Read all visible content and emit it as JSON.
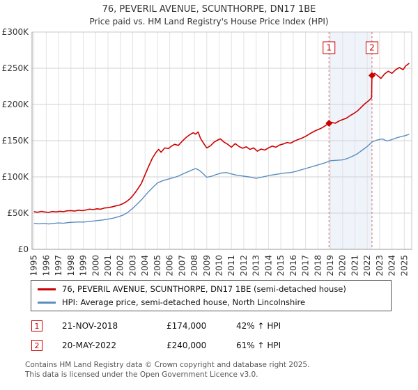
{
  "title": "76, PEVERIL AVENUE, SCUNTHORPE, DN17 1BE",
  "subtitle": "Price paid vs. HM Land Registry's House Price Index (HPI)",
  "chart_data": {
    "type": "line",
    "xlim": [
      1994.85,
      2025.6
    ],
    "ylim": [
      0,
      300000
    ],
    "grid": true,
    "legend_position": "bottom",
    "yticks": {
      "values": [
        0,
        50000,
        100000,
        150000,
        200000,
        250000,
        300000
      ],
      "labels": [
        "£0",
        "£50K",
        "£100K",
        "£150K",
        "£200K",
        "£250K",
        "£300K"
      ]
    },
    "xticks": [
      1995,
      1996,
      1997,
      1998,
      1999,
      2000,
      2001,
      2002,
      2003,
      2004,
      2005,
      2006,
      2007,
      2008,
      2009,
      2010,
      2011,
      2012,
      2013,
      2014,
      2015,
      2016,
      2017,
      2018,
      2019,
      2020,
      2021,
      2022,
      2023,
      2024,
      2025
    ],
    "band": {
      "from": 2018.9,
      "to": 2022.38,
      "color": "#e6edf8"
    },
    "marker_line_color": "#dd6666",
    "series": [
      {
        "name": "76, PEVERIL AVENUE, SCUNTHORPE, DN17 1BE (semi-detached house)",
        "color": "#cc0000",
        "points": [
          [
            1995.0,
            52000
          ],
          [
            1995.3,
            51200
          ],
          [
            1995.6,
            52400
          ],
          [
            1995.9,
            51500
          ],
          [
            1996.2,
            51000
          ],
          [
            1996.5,
            52200
          ],
          [
            1996.8,
            51600
          ],
          [
            1997.1,
            52500
          ],
          [
            1997.4,
            52000
          ],
          [
            1997.7,
            53200
          ],
          [
            1998.0,
            53500
          ],
          [
            1998.3,
            52800
          ],
          [
            1998.6,
            54000
          ],
          [
            1998.9,
            53400
          ],
          [
            1999.2,
            54200
          ],
          [
            1999.5,
            55500
          ],
          [
            1999.8,
            54800
          ],
          [
            2000.1,
            56000
          ],
          [
            2000.4,
            55400
          ],
          [
            2000.7,
            57000
          ],
          [
            2001.0,
            57500
          ],
          [
            2001.3,
            58500
          ],
          [
            2001.6,
            59800
          ],
          [
            2001.9,
            61000
          ],
          [
            2002.2,
            63000
          ],
          [
            2002.5,
            66000
          ],
          [
            2002.8,
            70000
          ],
          [
            2003.1,
            76000
          ],
          [
            2003.4,
            83000
          ],
          [
            2003.7,
            91000
          ],
          [
            2004.0,
            103000
          ],
          [
            2004.3,
            115000
          ],
          [
            2004.6,
            126000
          ],
          [
            2004.9,
            134000
          ],
          [
            2005.1,
            138000
          ],
          [
            2005.3,
            134000
          ],
          [
            2005.6,
            140000
          ],
          [
            2005.9,
            139000
          ],
          [
            2006.1,
            142000
          ],
          [
            2006.4,
            145000
          ],
          [
            2006.7,
            143500
          ],
          [
            2007.0,
            149000
          ],
          [
            2007.3,
            154000
          ],
          [
            2007.6,
            158000
          ],
          [
            2007.9,
            161000
          ],
          [
            2008.1,
            159000
          ],
          [
            2008.3,
            162000
          ],
          [
            2008.5,
            153000
          ],
          [
            2008.8,
            145000
          ],
          [
            2009.0,
            140000
          ],
          [
            2009.3,
            143000
          ],
          [
            2009.6,
            148000
          ],
          [
            2009.9,
            151000
          ],
          [
            2010.1,
            152500
          ],
          [
            2010.4,
            148000
          ],
          [
            2010.7,
            145000
          ],
          [
            2011.0,
            141000
          ],
          [
            2011.3,
            146000
          ],
          [
            2011.6,
            142000
          ],
          [
            2011.9,
            139500
          ],
          [
            2012.2,
            141500
          ],
          [
            2012.5,
            138000
          ],
          [
            2012.8,
            140000
          ],
          [
            2013.1,
            135500
          ],
          [
            2013.4,
            138500
          ],
          [
            2013.7,
            137000
          ],
          [
            2014.0,
            140000
          ],
          [
            2014.3,
            142500
          ],
          [
            2014.6,
            141000
          ],
          [
            2014.9,
            144000
          ],
          [
            2015.2,
            145500
          ],
          [
            2015.5,
            147500
          ],
          [
            2015.8,
            146500
          ],
          [
            2016.1,
            149500
          ],
          [
            2016.4,
            151500
          ],
          [
            2016.7,
            153500
          ],
          [
            2017.0,
            156000
          ],
          [
            2017.3,
            159000
          ],
          [
            2017.6,
            162000
          ],
          [
            2017.9,
            164500
          ],
          [
            2018.2,
            166500
          ],
          [
            2018.5,
            169500
          ],
          [
            2018.9,
            174000
          ],
          [
            2019.1,
            175500
          ],
          [
            2019.4,
            174000
          ],
          [
            2019.7,
            177000
          ],
          [
            2020.0,
            179000
          ],
          [
            2020.3,
            181000
          ],
          [
            2020.6,
            184500
          ],
          [
            2020.9,
            187500
          ],
          [
            2021.2,
            191000
          ],
          [
            2021.5,
            196000
          ],
          [
            2021.8,
            201000
          ],
          [
            2022.1,
            205000
          ],
          [
            2022.35,
            209000
          ],
          [
            2022.38,
            240000
          ],
          [
            2022.6,
            243000
          ],
          [
            2022.9,
            239000
          ],
          [
            2023.1,
            236000
          ],
          [
            2023.4,
            242000
          ],
          [
            2023.7,
            246000
          ],
          [
            2024.0,
            243000
          ],
          [
            2024.3,
            248000
          ],
          [
            2024.6,
            251000
          ],
          [
            2024.9,
            248000
          ],
          [
            2025.1,
            253000
          ],
          [
            2025.4,
            257000
          ]
        ]
      },
      {
        "name": "HPI: Average price, semi-detached house, North Lincolnshire",
        "color": "#5b8cbe",
        "points": [
          [
            1995.0,
            36000
          ],
          [
            1995.4,
            35200
          ],
          [
            1995.8,
            35800
          ],
          [
            1996.2,
            35000
          ],
          [
            1996.6,
            35800
          ],
          [
            1997.0,
            36400
          ],
          [
            1997.4,
            36000
          ],
          [
            1997.8,
            37000
          ],
          [
            1998.2,
            37400
          ],
          [
            1998.6,
            37800
          ],
          [
            1999.0,
            37600
          ],
          [
            1999.4,
            38400
          ],
          [
            1999.8,
            39000
          ],
          [
            2000.2,
            39800
          ],
          [
            2000.6,
            40600
          ],
          [
            2001.0,
            41600
          ],
          [
            2001.4,
            43000
          ],
          [
            2001.8,
            44800
          ],
          [
            2002.2,
            47000
          ],
          [
            2002.6,
            51000
          ],
          [
            2003.0,
            56500
          ],
          [
            2003.4,
            63000
          ],
          [
            2003.8,
            70000
          ],
          [
            2004.2,
            78000
          ],
          [
            2004.6,
            85000
          ],
          [
            2005.0,
            91500
          ],
          [
            2005.4,
            94500
          ],
          [
            2005.8,
            96500
          ],
          [
            2006.2,
            98500
          ],
          [
            2006.6,
            100500
          ],
          [
            2007.0,
            103500
          ],
          [
            2007.4,
            106500
          ],
          [
            2007.8,
            109500
          ],
          [
            2008.1,
            111500
          ],
          [
            2008.4,
            109000
          ],
          [
            2008.7,
            104500
          ],
          [
            2009.0,
            99500
          ],
          [
            2009.4,
            101000
          ],
          [
            2009.8,
            103500
          ],
          [
            2010.2,
            105500
          ],
          [
            2010.6,
            106000
          ],
          [
            2011.0,
            104000
          ],
          [
            2011.4,
            102500
          ],
          [
            2011.8,
            101500
          ],
          [
            2012.2,
            100500
          ],
          [
            2012.6,
            99500
          ],
          [
            2013.0,
            98000
          ],
          [
            2013.4,
            99500
          ],
          [
            2013.8,
            101000
          ],
          [
            2014.2,
            102500
          ],
          [
            2014.6,
            103500
          ],
          [
            2015.0,
            104500
          ],
          [
            2015.4,
            105500
          ],
          [
            2015.8,
            106000
          ],
          [
            2016.2,
            107500
          ],
          [
            2016.6,
            109500
          ],
          [
            2017.0,
            111500
          ],
          [
            2017.4,
            113500
          ],
          [
            2017.8,
            115500
          ],
          [
            2018.2,
            117500
          ],
          [
            2018.6,
            119500
          ],
          [
            2018.9,
            122000
          ],
          [
            2019.2,
            122500
          ],
          [
            2019.6,
            123000
          ],
          [
            2020.0,
            123500
          ],
          [
            2020.4,
            125500
          ],
          [
            2020.8,
            128500
          ],
          [
            2021.2,
            132000
          ],
          [
            2021.6,
            137000
          ],
          [
            2022.0,
            142000
          ],
          [
            2022.4,
            148500
          ],
          [
            2022.8,
            151000
          ],
          [
            2023.2,
            152500
          ],
          [
            2023.6,
            149500
          ],
          [
            2024.0,
            151500
          ],
          [
            2024.4,
            154000
          ],
          [
            2024.8,
            156000
          ],
          [
            2025.1,
            157000
          ],
          [
            2025.4,
            159000
          ]
        ]
      }
    ],
    "markers": [
      {
        "num": "1",
        "x": 2018.9,
        "y": 174000,
        "color": "#cc0000"
      },
      {
        "num": "2",
        "x": 2022.38,
        "y": 240000,
        "color": "#cc0000"
      }
    ]
  },
  "transactions": [
    {
      "num": "1",
      "date": "21-NOV-2018",
      "price": "£174,000",
      "hpi": "42% ↑ HPI"
    },
    {
      "num": "2",
      "date": "20-MAY-2022",
      "price": "£240,000",
      "hpi": "61% ↑ HPI"
    }
  ],
  "footer": {
    "line1": "Contains HM Land Registry data © Crown copyright and database right 2025.",
    "line2": "This data is licensed under the Open Government Licence v3.0."
  }
}
